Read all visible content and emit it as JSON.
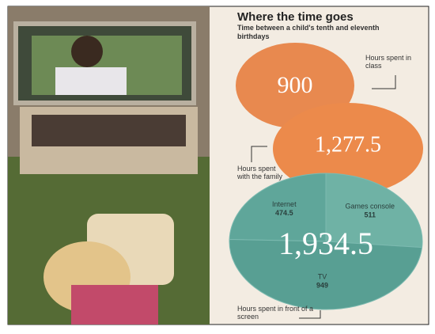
{
  "header": {
    "title": "Where the time goes",
    "subtitle": "Time between a child's tenth and eleventh birthdays"
  },
  "circles": [
    {
      "value_label": "900",
      "caption": "Hours spent in class"
    },
    {
      "value_label": "1,277.5",
      "caption": "Hours spent with the family"
    },
    {
      "value_label": "1,934.5",
      "caption": "Hours spent in front of a screen"
    }
  ],
  "screen_breakdown": [
    {
      "label": "Internet",
      "value": 474.5,
      "color": "#5fa69a"
    },
    {
      "label": "Games console",
      "value": 511,
      "color": "#6fb2a5"
    },
    {
      "label": "TV",
      "value": 949,
      "color": "#589f93"
    }
  ]
}
